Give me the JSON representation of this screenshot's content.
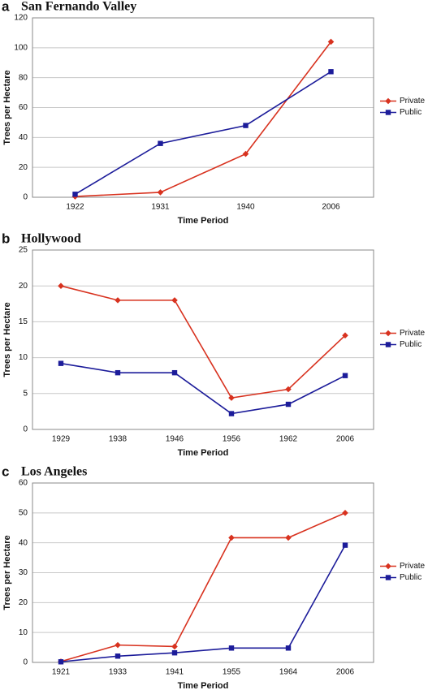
{
  "chart_data": [
    {
      "type": "line",
      "panel_label": "a",
      "title": "San Fernando Valley",
      "x_label": "Time Period",
      "y_label": "Trees per Hectare",
      "categories": [
        "1922",
        "1931",
        "1940",
        "2006"
      ],
      "series": [
        {
          "name": "Private",
          "color": "#d8321f",
          "marker": "diamond",
          "values": [
            0.5,
            3.3,
            29,
            104
          ]
        },
        {
          "name": "Public",
          "color": "#1c1c9a",
          "marker": "square",
          "values": [
            2,
            36,
            48,
            84
          ]
        }
      ],
      "ylim": [
        0,
        120
      ],
      "yticks": [
        0,
        20,
        40,
        60,
        80,
        100,
        120
      ],
      "grid": true,
      "legend": "right"
    },
    {
      "type": "line",
      "panel_label": "b",
      "title": "Hollywood",
      "x_label": "Time Period",
      "y_label": "Trees per Hectare",
      "categories": [
        "1929",
        "1938",
        "1946",
        "1956",
        "1962",
        "2006"
      ],
      "series": [
        {
          "name": "Private",
          "color": "#d8321f",
          "marker": "diamond",
          "values": [
            20,
            18,
            18,
            4.4,
            5.6,
            13.1
          ]
        },
        {
          "name": "Public",
          "color": "#1c1c9a",
          "marker": "square",
          "values": [
            9.2,
            7.9,
            7.9,
            2.2,
            3.5,
            7.5
          ]
        }
      ],
      "ylim": [
        0,
        25
      ],
      "yticks": [
        0,
        5,
        10,
        15,
        20,
        25
      ],
      "grid": true,
      "legend": "right"
    },
    {
      "type": "line",
      "panel_label": "c",
      "title": "Los Angeles",
      "x_label": "Time Period",
      "y_label": "Trees per Hectare",
      "categories": [
        "1921",
        "1933",
        "1941",
        "1955",
        "1964",
        "2006"
      ],
      "series": [
        {
          "name": "Private",
          "color": "#d8321f",
          "marker": "diamond",
          "values": [
            0.3,
            5.8,
            5.3,
            41.7,
            41.7,
            50
          ]
        },
        {
          "name": "Public",
          "color": "#1c1c9a",
          "marker": "square",
          "values": [
            0.2,
            2.1,
            3.2,
            4.8,
            4.8,
            39.2
          ]
        }
      ],
      "ylim": [
        0,
        60
      ],
      "yticks": [
        0,
        10,
        20,
        30,
        40,
        50,
        60
      ],
      "grid": true,
      "legend": "right"
    }
  ]
}
